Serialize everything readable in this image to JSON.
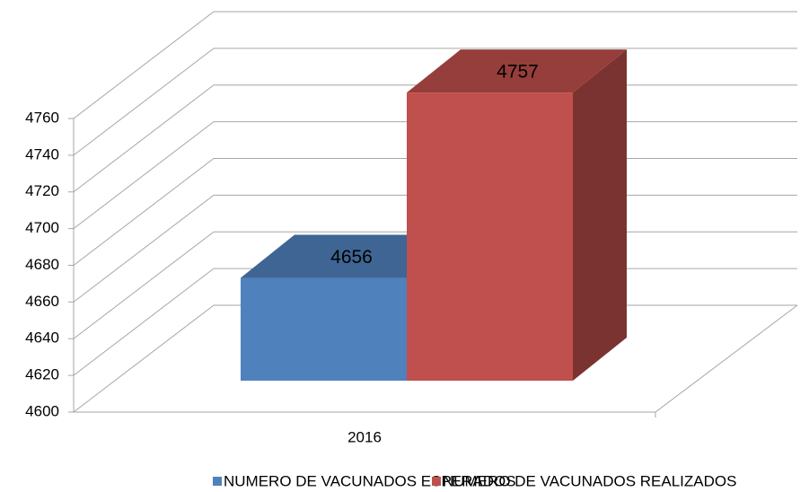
{
  "chart_data": {
    "type": "bar3d",
    "categories": [
      "2016"
    ],
    "series": [
      {
        "name": "NUMERO DE VACUNADOS ESPERADOS",
        "color": "#4f81bd",
        "values": [
          4656
        ]
      },
      {
        "name": "NUMERO DE VACUNADOS REALIZADOS",
        "color": "#c0504d",
        "values": [
          4757
        ]
      }
    ],
    "ylim": [
      4600,
      4760
    ],
    "yticks": [
      4600,
      4620,
      4640,
      4660,
      4680,
      4700,
      4720,
      4740,
      4760
    ],
    "grid": true,
    "legend": "bottom"
  }
}
